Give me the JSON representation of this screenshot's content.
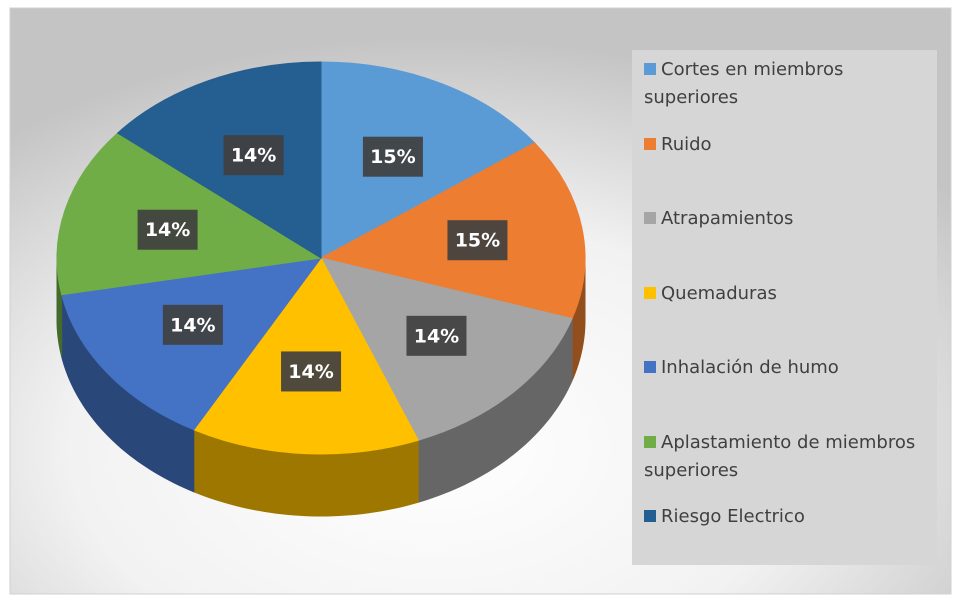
{
  "chart_data": {
    "type": "pie3d",
    "categories": [
      "Cortes en miembros superiores",
      "Ruido",
      "Atrapamientos",
      "Quemaduras",
      "Inhalación de humo",
      "Aplastamiento de miembros superiores",
      "Riesgo Electrico"
    ],
    "values": [
      15,
      15,
      14,
      14,
      14,
      14,
      14
    ],
    "value_labels": [
      "15%",
      "15%",
      "14%",
      "14%",
      "14%",
      "14%",
      "14%"
    ],
    "colors": [
      "#5b9bd5",
      "#ed7d31",
      "#a5a5a5",
      "#ffc000",
      "#4472c4",
      "#70ad47",
      "#255e91"
    ],
    "legend": "right"
  }
}
